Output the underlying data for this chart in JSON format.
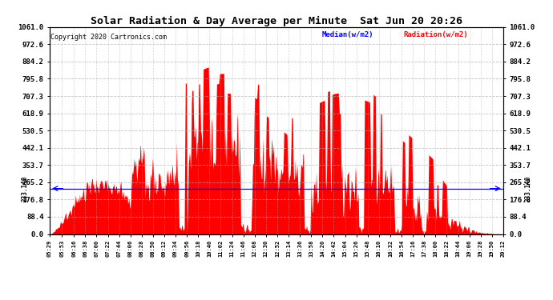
{
  "title": "Solar Radiation & Day Average per Minute  Sat Jun 20 20:26",
  "copyright": "Copyright 2020 Cartronics.com",
  "legend_median": "Median(w/m2)",
  "legend_radiation": "Radiation(w/m2)",
  "median_value": 233.14,
  "ymax": 1061.0,
  "yticks": [
    0.0,
    88.4,
    176.8,
    265.2,
    353.7,
    442.1,
    530.5,
    618.9,
    707.3,
    795.8,
    884.2,
    972.6,
    1061.0
  ],
  "bg_color": "#ffffff",
  "grid_color": "#aaaaaa",
  "fill_color": "#ff0000",
  "median_color": "#0000ff",
  "title_color": "#000000",
  "copyright_color": "#000000",
  "xtick_labels": [
    "05:29",
    "05:53",
    "06:16",
    "06:38",
    "07:00",
    "07:22",
    "07:44",
    "08:06",
    "08:28",
    "08:50",
    "09:12",
    "09:34",
    "09:56",
    "10:18",
    "10:40",
    "11:02",
    "11:24",
    "11:46",
    "12:08",
    "12:30",
    "12:52",
    "13:14",
    "13:36",
    "13:58",
    "14:20",
    "14:42",
    "15:04",
    "15:26",
    "15:48",
    "16:10",
    "16:32",
    "16:54",
    "17:16",
    "17:38",
    "18:00",
    "18:22",
    "18:44",
    "19:06",
    "19:28",
    "19:50",
    "20:12"
  ]
}
